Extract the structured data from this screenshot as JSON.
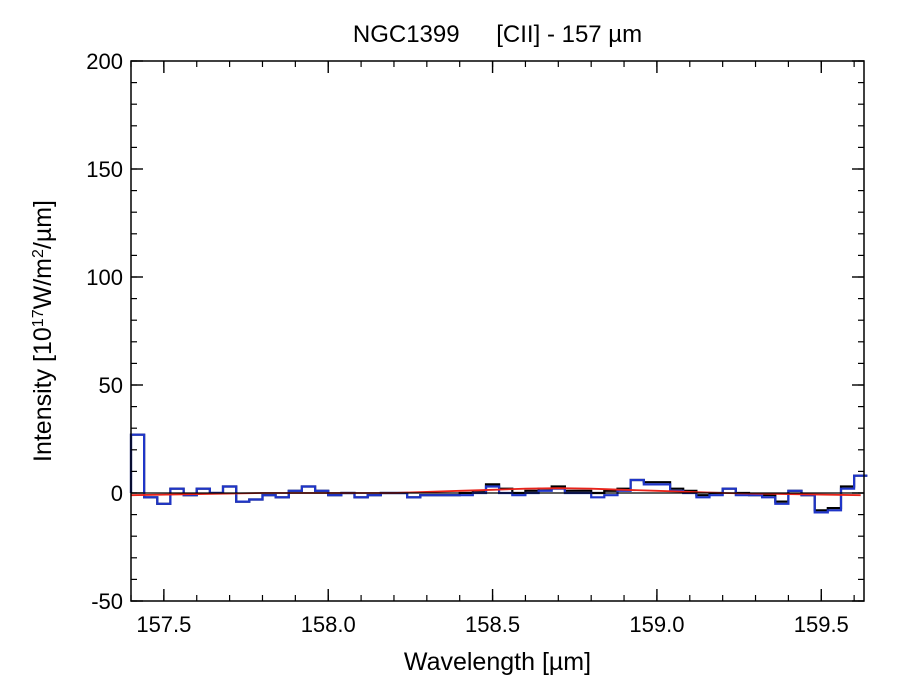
{
  "chart_data": {
    "type": "line",
    "title": {
      "object": "NGC1399",
      "line": "[CII] - 157 µm"
    },
    "xlabel": "Wavelength [µm]",
    "ylabel": {
      "prefix": "Intensity [10",
      "exp1": "17",
      "mid": "W/m",
      "exp2": "2",
      "suffix": "/µm]"
    },
    "xlim": [
      157.4,
      159.63
    ],
    "ylim": [
      -50,
      200
    ],
    "xticks": [
      157.5,
      158.0,
      158.5,
      159.0,
      159.5
    ],
    "xtick_labels": [
      "157.5",
      "158.0",
      "158.5",
      "159.0",
      "159.5"
    ],
    "yticks": [
      -50,
      0,
      50,
      100,
      150,
      200
    ],
    "ytick_labels": [
      "-50",
      "0",
      "50",
      "100",
      "150",
      "200"
    ],
    "zero_line": true,
    "grid": false,
    "series": [
      {
        "style": "steps",
        "color": "#000000",
        "x": [
          157.4,
          157.44,
          157.48,
          157.52,
          157.56,
          157.6,
          157.64,
          157.68,
          157.72,
          157.76,
          157.8,
          157.84,
          157.88,
          157.92,
          157.96,
          158.0,
          158.04,
          158.08,
          158.12,
          158.16,
          158.2,
          158.24,
          158.28,
          158.32,
          158.36,
          158.4,
          158.44,
          158.48,
          158.52,
          158.56,
          158.6,
          158.64,
          158.68,
          158.72,
          158.76,
          158.8,
          158.84,
          158.88,
          158.92,
          158.96,
          159.0,
          159.04,
          159.08,
          159.12,
          159.16,
          159.2,
          159.24,
          159.28,
          159.32,
          159.36,
          159.4,
          159.44,
          159.48,
          159.52,
          159.56,
          159.6
        ],
        "y": [
          27,
          -2,
          -5,
          2,
          -1,
          2,
          0,
          3,
          -4,
          -3,
          -1,
          -2,
          1,
          3,
          1,
          -1,
          0,
          -2,
          -1,
          0,
          0,
          -2,
          -1,
          -1,
          -1,
          0,
          1,
          4,
          2,
          0,
          1,
          2,
          3,
          1,
          1,
          0,
          1,
          2,
          6,
          5,
          5,
          2,
          1,
          -1,
          0,
          2,
          0,
          -1,
          -1,
          -4,
          1,
          -1,
          -8,
          -7,
          3,
          8
        ]
      },
      {
        "style": "steps",
        "color": "#1f35c8",
        "x": [
          157.4,
          157.44,
          157.48,
          157.52,
          157.56,
          157.6,
          157.64,
          157.68,
          157.72,
          157.76,
          157.8,
          157.84,
          157.88,
          157.92,
          157.96,
          158.0,
          158.04,
          158.08,
          158.12,
          158.16,
          158.2,
          158.24,
          158.28,
          158.32,
          158.36,
          158.4,
          158.44,
          158.48,
          158.52,
          158.56,
          158.6,
          158.64,
          158.68,
          158.72,
          158.76,
          158.8,
          158.84,
          158.88,
          158.92,
          158.96,
          159.0,
          159.04,
          159.08,
          159.12,
          159.16,
          159.2,
          159.24,
          159.28,
          159.32,
          159.36,
          159.4,
          159.44,
          159.48,
          159.52,
          159.56,
          159.6
        ],
        "y": [
          27,
          -2,
          -5,
          2,
          -1,
          2,
          0,
          3,
          -4,
          -3,
          -1,
          -2,
          1,
          3,
          1,
          -1,
          0,
          -2,
          -1,
          0,
          0,
          -2,
          -1,
          -1,
          -1,
          -1,
          0,
          3,
          0,
          -1,
          0,
          1,
          2,
          0,
          0,
          -2,
          -1,
          1,
          6,
          4,
          4,
          1,
          0,
          -2,
          -1,
          2,
          -1,
          -1,
          -2,
          -5,
          1,
          -1,
          -9,
          -8,
          2,
          8
        ]
      },
      {
        "style": "smooth",
        "color": "#e8231a",
        "x": [
          157.4,
          157.6,
          157.8,
          158.0,
          158.2,
          158.4,
          158.5,
          158.6,
          158.7,
          158.8,
          158.9,
          159.0,
          159.1,
          159.2,
          159.4,
          159.62
        ],
        "y": [
          -1,
          -0.5,
          0,
          0,
          0,
          1,
          1.5,
          2,
          2.2,
          2,
          1.5,
          1,
          0.5,
          0,
          -0.5,
          -1
        ]
      }
    ]
  }
}
